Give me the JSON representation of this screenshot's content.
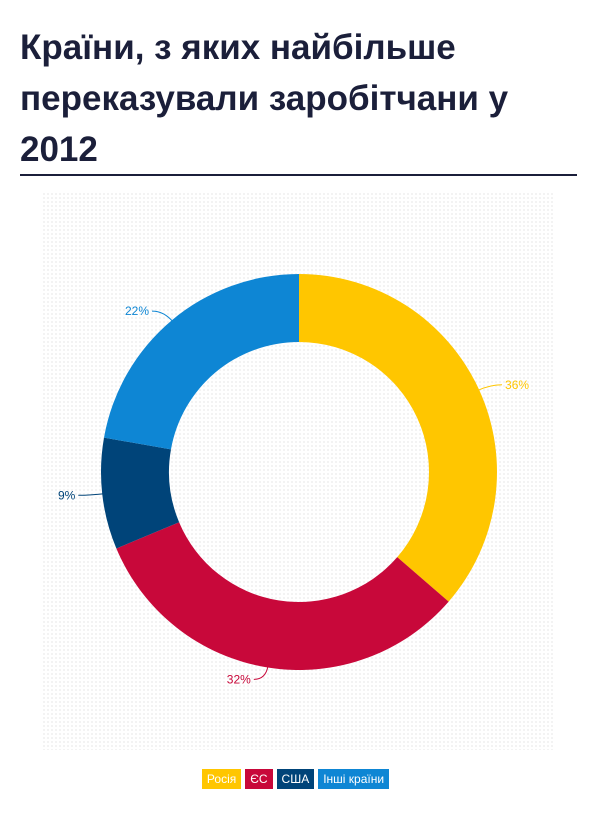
{
  "header": {
    "title": "Країни, з яких найбільше переказували заробітчани у 2012"
  },
  "chart_data": {
    "type": "pie",
    "style": "donut",
    "title": "Країни, з яких найбільше переказували заробітчани у 2012",
    "slices": [
      {
        "name": "Росія",
        "value": 36,
        "label": "36%",
        "color": "#ffc600"
      },
      {
        "name": "ЄС",
        "value": 32,
        "label": "32%",
        "color": "#c8083a"
      },
      {
        "name": "США",
        "value": 9,
        "label": "9%",
        "color": "#004479"
      },
      {
        "name": "Інші країни",
        "value": 22,
        "label": "22%",
        "color": "#0e86d4"
      }
    ],
    "legend_position": "bottom"
  }
}
